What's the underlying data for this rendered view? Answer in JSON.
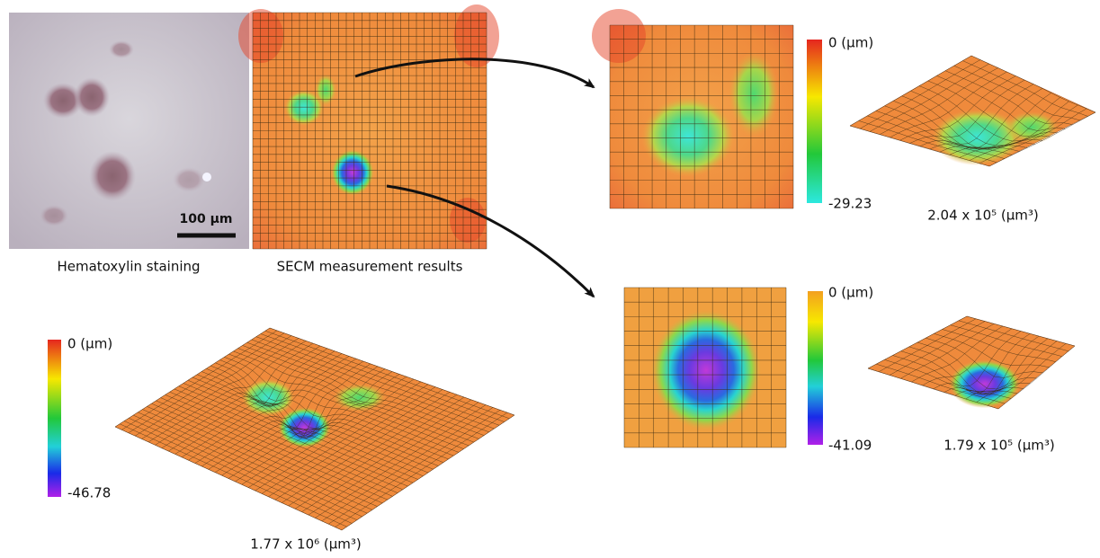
{
  "panels": {
    "staining": {
      "scale_bar": "100 µm",
      "caption": "Hematoxylin staining"
    },
    "secm": {
      "caption": "SECM measurement results"
    },
    "region_1": {
      "colorbar_top": "0 (µm)",
      "colorbar_bottom": "-29.23",
      "volume": "2.04 x 10⁵ (µm³)"
    },
    "region_2": {
      "colorbar_top": "0 (µm)",
      "colorbar_bottom": "-41.09",
      "volume": "1.79 x 10⁵ (µm³)"
    },
    "overall": {
      "colorbar_top": "0 (µm)",
      "colorbar_bottom": "-46.78",
      "volume": "1.77 x 10⁶ (µm³)"
    }
  }
}
